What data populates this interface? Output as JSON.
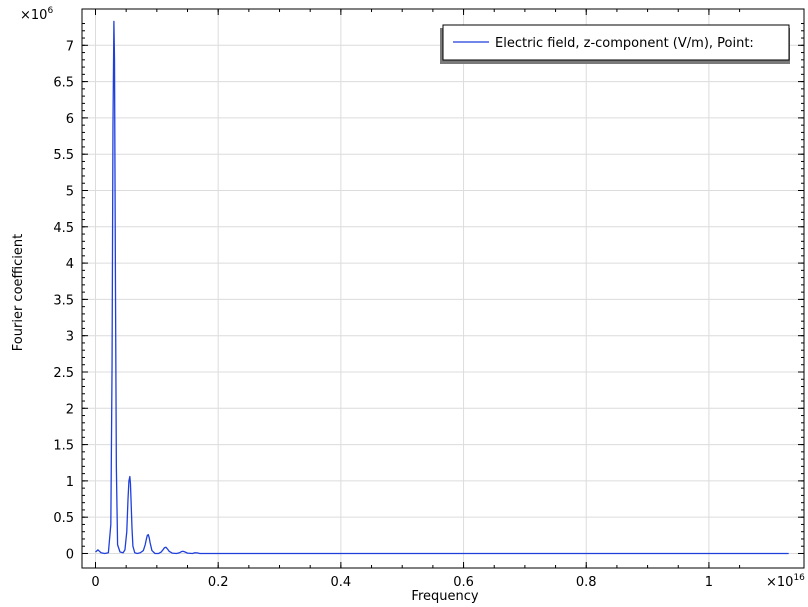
{
  "chart_data": {
    "type": "line",
    "title": "",
    "xlabel": "Frequency",
    "ylabel": "Fourier coefficient",
    "x_multiplier": {
      "base": "×10",
      "exp": "16"
    },
    "y_multiplier": {
      "base": "×10",
      "exp": "6"
    },
    "xlim": [
      -0.022,
      1.155
    ],
    "ylim": [
      -0.2,
      7.5
    ],
    "x_ticks": [
      0,
      0.2,
      0.4,
      0.6,
      0.8,
      1
    ],
    "x_tick_labels": [
      "0",
      "0.2",
      "0.4",
      "0.6",
      "0.8",
      "1"
    ],
    "y_ticks": [
      0,
      0.5,
      1,
      1.5,
      2,
      2.5,
      3,
      3.5,
      4,
      4.5,
      5,
      5.5,
      6,
      6.5,
      7
    ],
    "y_tick_labels": [
      "0",
      "0.5",
      "1",
      "1.5",
      "2",
      "2.5",
      "3",
      "3.5",
      "4",
      "4.5",
      "5",
      "5.5",
      "6",
      "6.5",
      "7"
    ],
    "grid": true,
    "legend_position": "top-right",
    "series": [
      {
        "name": "Electric field, z-component (V/m), Point:",
        "color": "#1f3fdc",
        "x": [
          0,
          0.004,
          0.0065,
          0.009,
          0.015,
          0.021,
          0.025,
          0.027,
          0.0285,
          0.03,
          0.031,
          0.0325,
          0.034,
          0.036,
          0.04,
          0.045,
          0.048,
          0.051,
          0.053,
          0.0545,
          0.056,
          0.057,
          0.058,
          0.0595,
          0.061,
          0.064,
          0.068,
          0.073,
          0.078,
          0.081,
          0.083,
          0.0845,
          0.086,
          0.0875,
          0.089,
          0.092,
          0.097,
          0.103,
          0.107,
          0.11,
          0.1125,
          0.115,
          0.1175,
          0.12,
          0.125,
          0.132,
          0.137,
          0.14,
          0.143,
          0.146,
          0.15,
          0.158,
          0.162,
          0.166,
          0.17,
          0.2,
          0.4,
          0.6,
          0.8,
          1,
          1.13
        ],
        "y": [
          0.02,
          0.05,
          0.03,
          0.01,
          0.0,
          0.01,
          0.4,
          2.6,
          5.9,
          7.33,
          6.8,
          3.8,
          1.2,
          0.12,
          0.02,
          0.01,
          0.05,
          0.3,
          0.75,
          1.0,
          1.06,
          0.96,
          0.72,
          0.35,
          0.1,
          0.01,
          0.0,
          0.01,
          0.04,
          0.12,
          0.2,
          0.25,
          0.26,
          0.22,
          0.15,
          0.04,
          0.0,
          0.0,
          0.02,
          0.05,
          0.08,
          0.085,
          0.06,
          0.03,
          0.005,
          0.0,
          0.01,
          0.025,
          0.03,
          0.02,
          0.005,
          0.0,
          0.01,
          0.008,
          0.0,
          0.0,
          0.0,
          0.0,
          0.0,
          0.0,
          0.0
        ]
      }
    ]
  }
}
